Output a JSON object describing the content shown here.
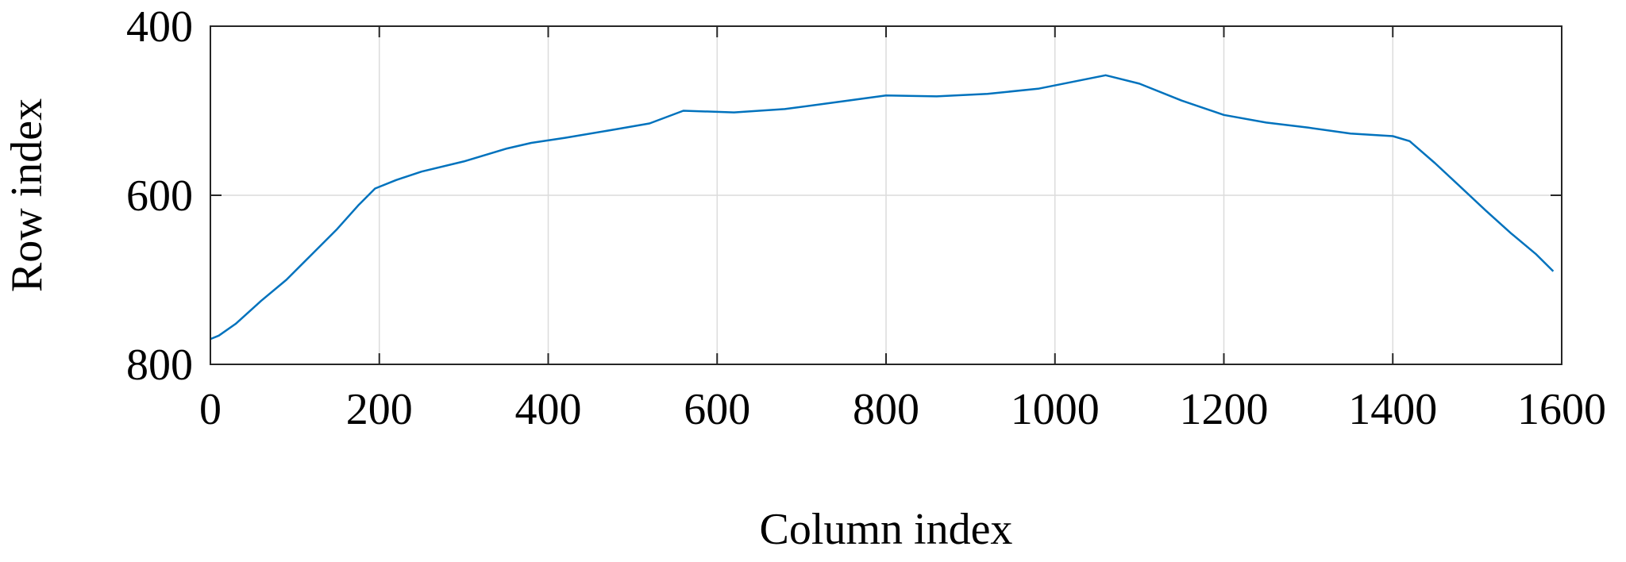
{
  "chart_data": {
    "type": "line",
    "title": "",
    "xlabel": "Column index",
    "ylabel": "Row index",
    "xlim": [
      0,
      1600
    ],
    "ylim": [
      400,
      800
    ],
    "y_reversed": true,
    "grid": true,
    "legend": "none",
    "x_ticks": [
      "0",
      "200",
      "400",
      "600",
      "800",
      "1000",
      "1200",
      "1400",
      "1600"
    ],
    "y_ticks": [
      "400",
      "600",
      "800"
    ],
    "series": [
      {
        "color": "#0072BD",
        "x": [
          0,
          10,
          30,
          60,
          90,
          120,
          150,
          175,
          195,
          220,
          250,
          300,
          350,
          380,
          420,
          480,
          520,
          560,
          620,
          680,
          740,
          800,
          860,
          920,
          980,
          1020,
          1060,
          1100,
          1150,
          1200,
          1250,
          1300,
          1350,
          1400,
          1420,
          1450,
          1480,
          1510,
          1540,
          1570,
          1590
        ],
        "y": [
          770,
          766,
          752,
          725,
          700,
          670,
          640,
          612,
          592,
          582,
          572,
          560,
          545,
          538,
          532,
          522,
          515,
          500,
          502,
          498,
          490,
          482,
          483,
          480,
          474,
          466,
          458,
          468,
          488,
          505,
          514,
          520,
          527,
          530,
          536,
          562,
          590,
          618,
          645,
          670,
          690
        ]
      }
    ]
  }
}
